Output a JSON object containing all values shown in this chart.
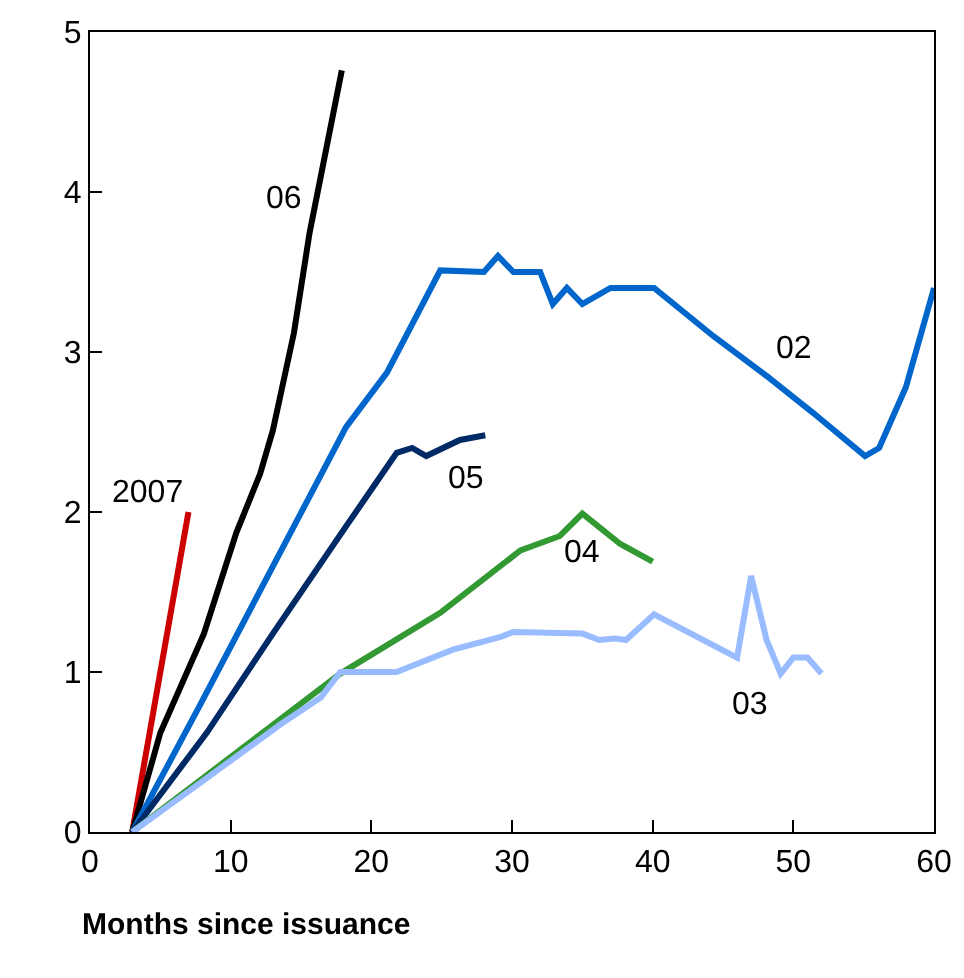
{
  "chart_data": {
    "type": "line",
    "xlabel": "Months since issuance",
    "xlim": [
      0,
      60
    ],
    "xticks": [
      0,
      10,
      20,
      30,
      40,
      50,
      60
    ],
    "ylim": [
      0,
      5
    ],
    "yticks": [
      0,
      1,
      2,
      3,
      4,
      5
    ],
    "grid": false,
    "legend": false,
    "marker": "none",
    "line_style": "solid",
    "series": [
      {
        "name": "2007",
        "color": "#cc0000",
        "x": [
          3,
          7
        ],
        "values": [
          0,
          2.0
        ]
      },
      {
        "name": "06",
        "color": "#000000",
        "x": [
          3,
          5,
          8.1,
          10.4,
          12.1,
          13,
          14.5,
          15.6,
          17.9
        ],
        "values": [
          0,
          0.62,
          1.24,
          1.87,
          2.24,
          2.51,
          3.12,
          3.74,
          4.76
        ]
      },
      {
        "name": "02",
        "color": "#0066cc",
        "x": [
          3,
          7.8,
          13,
          18.2,
          21.1,
          24.9,
          28,
          29,
          30.1,
          32,
          32.9,
          33.9,
          35,
          37,
          40.1,
          44.3,
          48.1,
          51.4,
          55.1,
          56.1,
          58,
          60
        ],
        "values": [
          0,
          0.79,
          1.66,
          2.53,
          2.87,
          3.51,
          3.5,
          3.6,
          3.5,
          3.5,
          3.3,
          3.4,
          3.3,
          3.4,
          3.4,
          3.1,
          2.85,
          2.62,
          2.35,
          2.4,
          2.78,
          3.4
        ]
      },
      {
        "name": "05",
        "color": "#002a66",
        "x": [
          3,
          8.3,
          13,
          18.2,
          21.8,
          22.9,
          23.9,
          26.3,
          28.1
        ],
        "values": [
          0,
          0.62,
          1.24,
          1.91,
          2.37,
          2.4,
          2.35,
          2.45,
          2.48
        ]
      },
      {
        "name": "04",
        "color": "#339933",
        "x": [
          3,
          17.8,
          24.9,
          30.6,
          33.4,
          35,
          37.7,
          40
        ],
        "values": [
          0,
          0.99,
          1.37,
          1.76,
          1.85,
          1.99,
          1.8,
          1.69
        ]
      },
      {
        "name": "03",
        "color": "#99bbff",
        "x": [
          3,
          7.1,
          13.5,
          16.4,
          17.8,
          21.8,
          25.8,
          29.2,
          30.1,
          35,
          36.2,
          37.3,
          38.1,
          40.1,
          46,
          47,
          48.1,
          49.1,
          50,
          51,
          52
        ],
        "values": [
          0,
          0.26,
          0.67,
          0.84,
          1.0,
          1.0,
          1.14,
          1.22,
          1.25,
          1.24,
          1.2,
          1.21,
          1.2,
          1.36,
          1.09,
          1.6,
          1.2,
          0.99,
          1.09,
          1.09,
          0.99
        ]
      }
    ]
  }
}
